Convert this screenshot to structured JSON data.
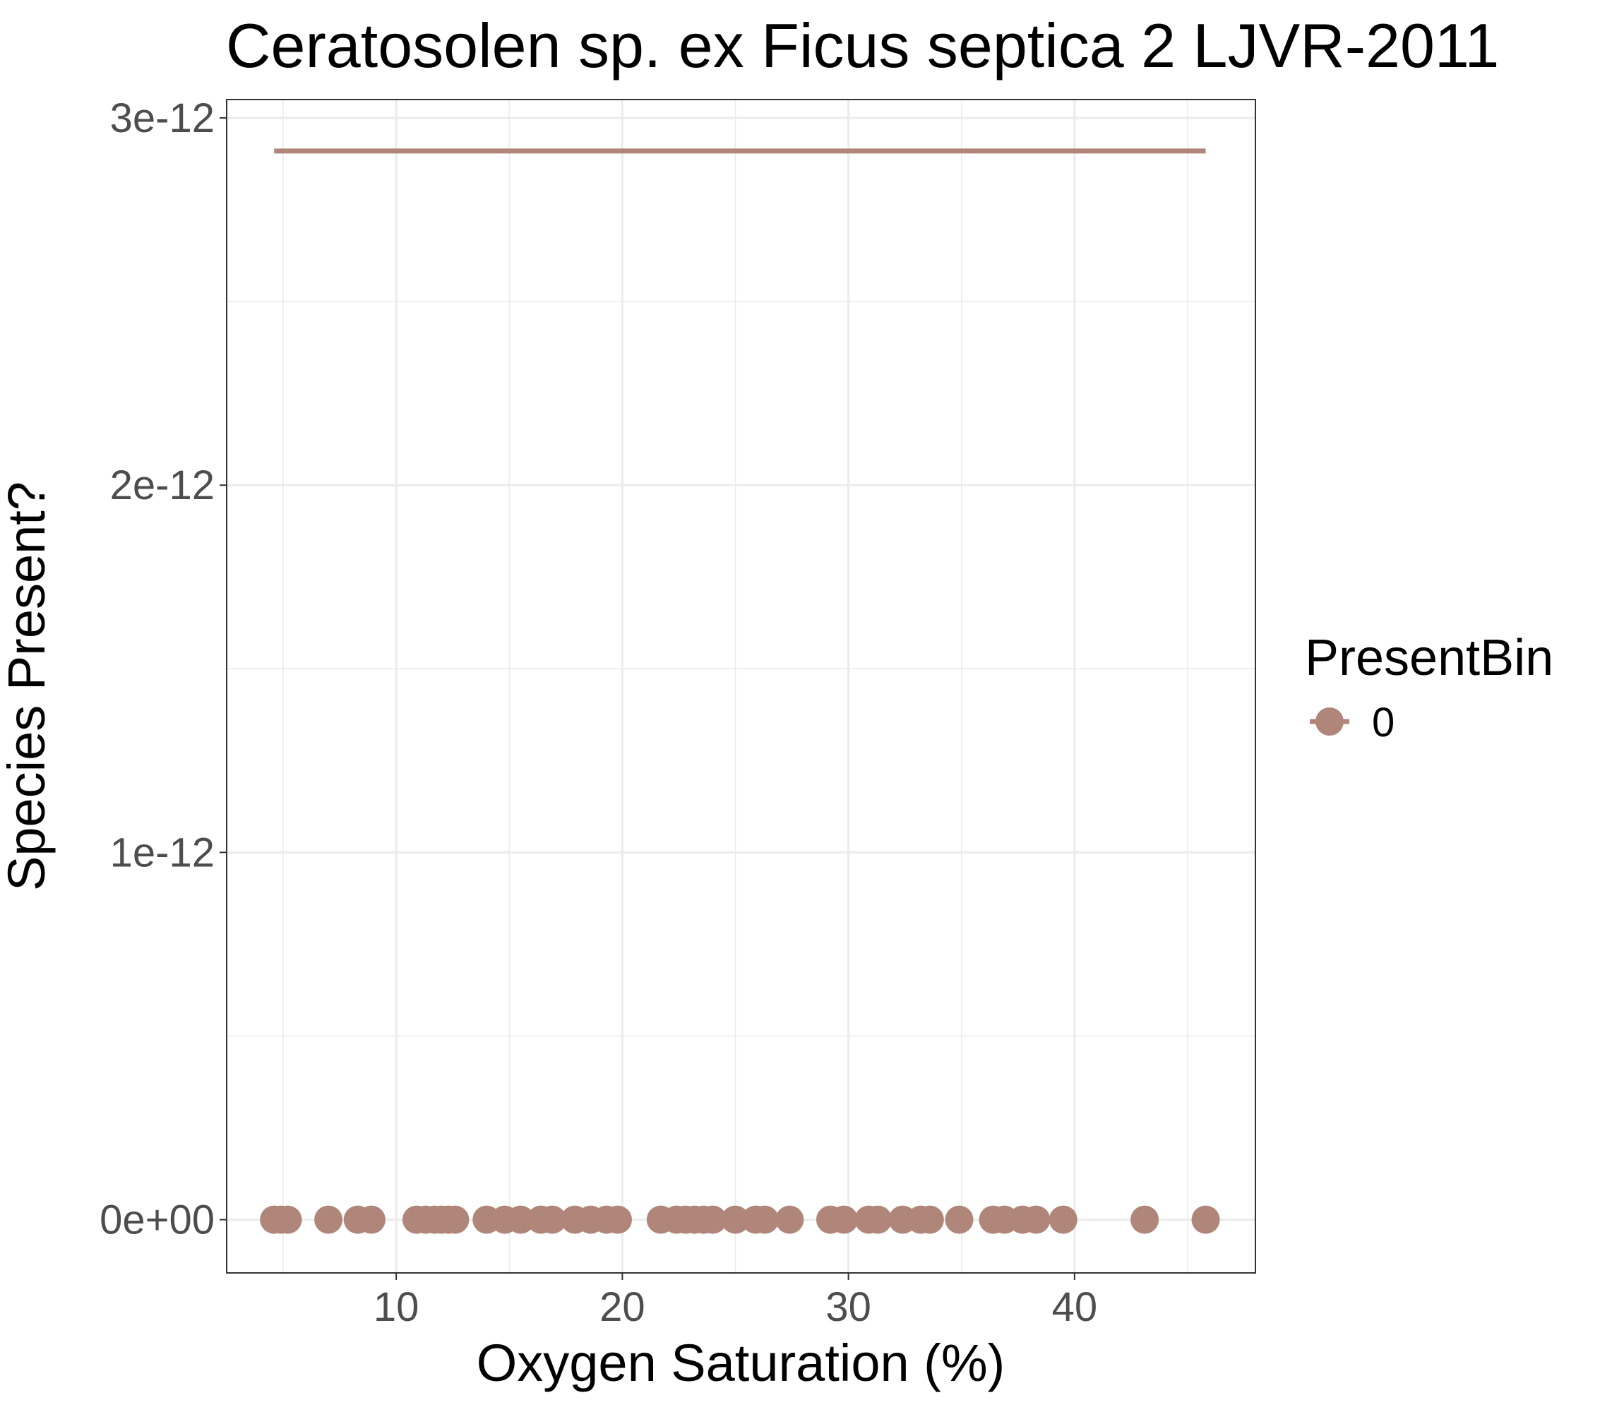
{
  "chart_data": {
    "type": "scatter",
    "title": "Ceratosolen sp. ex Ficus septica 2 LJVR-2011",
    "xlabel": "Oxygen Saturation (%)",
    "ylabel": "Species Present?",
    "xlim": [
      2.5,
      48
    ],
    "ylim": [
      -1.45e-13,
      3.05e-12
    ],
    "x_ticks": [
      10,
      20,
      30,
      40
    ],
    "x_tick_labels": [
      "10",
      "20",
      "30",
      "40"
    ],
    "y_ticks": [
      0,
      1e-12,
      2e-12,
      3e-12
    ],
    "y_tick_labels": [
      "0e+00",
      "1e-12",
      "2e-12",
      "3e-12"
    ],
    "grid": true,
    "legend": {
      "title": "PresentBin",
      "position": "right",
      "entries": [
        {
          "label": "0",
          "color": "#b0857a"
        }
      ]
    },
    "series": [
      {
        "name": "0",
        "color": "#b0857a",
        "points_x": [
          4.6,
          4.9,
          5.2,
          7.0,
          8.3,
          8.9,
          10.9,
          11.3,
          11.7,
          12.0,
          12.3,
          12.6,
          14.0,
          14.8,
          15.5,
          16.4,
          16.9,
          17.9,
          18.6,
          19.3,
          19.8,
          21.7,
          22.4,
          22.8,
          23.2,
          23.6,
          24.0,
          25.0,
          25.9,
          26.3,
          27.4,
          29.2,
          29.8,
          30.9,
          31.3,
          32.4,
          33.2,
          33.6,
          34.9,
          36.4,
          36.9,
          37.7,
          38.3,
          39.5,
          43.1,
          45.8
        ],
        "points_y": [
          0,
          0,
          0,
          0,
          0,
          0,
          0,
          0,
          0,
          0,
          0,
          0,
          0,
          0,
          0,
          0,
          0,
          0,
          0,
          0,
          0,
          0,
          0,
          0,
          0,
          0,
          0,
          0,
          0,
          0,
          0,
          0,
          0,
          0,
          0,
          0,
          0,
          0,
          0,
          0,
          0,
          0,
          0,
          0,
          0,
          0
        ],
        "fit_line": {
          "x": [
            4.6,
            45.8
          ],
          "y": [
            2.91e-12,
            2.91e-12
          ]
        }
      }
    ]
  }
}
